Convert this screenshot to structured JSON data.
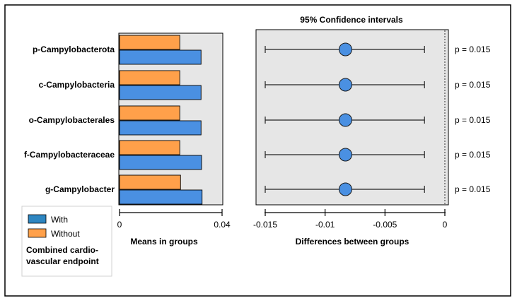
{
  "chart_data": [
    {
      "type": "bar",
      "orientation": "horizontal",
      "categories": [
        "p-Campylobacterota",
        "c-Campylobacteria",
        "o-Campylobacterales",
        "f-Campylobacteraceae",
        "g-Campylobacter"
      ],
      "series": [
        {
          "name": "Without",
          "color": "#ffa04a",
          "values": [
            0.0235,
            0.0235,
            0.0235,
            0.0235,
            0.0238
          ]
        },
        {
          "name": "With",
          "color": "#4a90e2",
          "values": [
            0.0318,
            0.0318,
            0.0318,
            0.032,
            0.0322
          ]
        }
      ],
      "xlim": [
        0,
        0.04
      ],
      "xticks": [
        "0",
        "0.04"
      ],
      "xlabel": "Means in groups",
      "legend": {
        "position": "bottom-left",
        "entries": [
          {
            "label": "With",
            "color": "#2e86c1"
          },
          {
            "label": "Without",
            "color": "#ffa04a"
          }
        ],
        "title_lines": [
          "Combined cardio-",
          "vascular endpoint"
        ]
      }
    },
    {
      "type": "scatter",
      "subtype": "confidence-interval",
      "title": "95% Confidence intervals",
      "xlabel": "Differences between groups",
      "xlim": [
        -0.0155,
        0
      ],
      "xticks": [
        {
          "value": -0.015,
          "label": "-0.015"
        },
        {
          "value": -0.01,
          "label": "-0.01"
        },
        {
          "value": -0.005,
          "label": "-0.005"
        },
        {
          "value": 0,
          "label": "0"
        }
      ],
      "points": [
        {
          "category": "p-Campylobacterota",
          "estimate": -0.0083,
          "lower": -0.015,
          "upper": -0.0017,
          "p_label": "p = 0.015"
        },
        {
          "category": "c-Campylobacteria",
          "estimate": -0.0083,
          "lower": -0.015,
          "upper": -0.0017,
          "p_label": "p = 0.015"
        },
        {
          "category": "o-Campylobacterales",
          "estimate": -0.0083,
          "lower": -0.015,
          "upper": -0.0017,
          "p_label": "p = 0.015"
        },
        {
          "category": "f-Campylobacteraceae",
          "estimate": -0.0083,
          "lower": -0.015,
          "upper": -0.0017,
          "p_label": "p = 0.015"
        },
        {
          "category": "g-Campylobacter",
          "estimate": -0.0083,
          "lower": -0.015,
          "upper": -0.0017,
          "p_label": "p = 0.015"
        }
      ],
      "point_color": "#4a90e2",
      "panel_color": "#e6e6e6"
    }
  ]
}
